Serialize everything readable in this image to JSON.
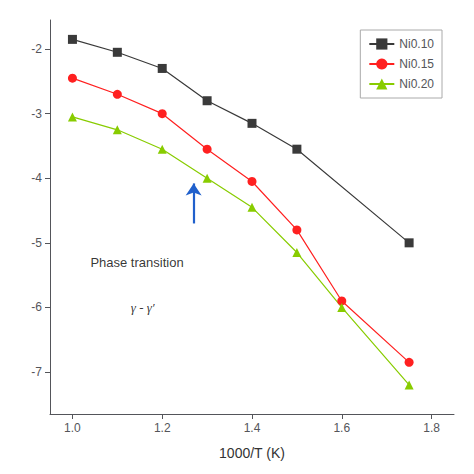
{
  "chart_data": {
    "type": "line",
    "xlabel": "1000/T (K)",
    "xlim": [
      0.95,
      1.85
    ],
    "ylim": [
      -7.65,
      -1.55
    ],
    "xticks": [
      {
        "value": 1.0,
        "label": "1.0"
      },
      1.2,
      1.4,
      1.6,
      1.8
    ],
    "yticks": [
      -7,
      -6,
      -5,
      -4,
      -3,
      -2
    ],
    "grid": false,
    "legend": "upper right",
    "series": [
      {
        "name": "Ni0.10",
        "color": "#3a3a3a",
        "marker": "square",
        "x": [
          1.0,
          1.1,
          1.2,
          1.3,
          1.4,
          1.5,
          1.75
        ],
        "values": [
          -1.85,
          -2.05,
          -2.3,
          -2.8,
          -3.15,
          -3.55,
          -5.0
        ]
      },
      {
        "name": "Ni0.15",
        "color": "#ff2020",
        "marker": "circle",
        "x": [
          1.0,
          1.1,
          1.2,
          1.3,
          1.4,
          1.5,
          1.6,
          1.75
        ],
        "values": [
          -2.45,
          -2.7,
          -3.0,
          -3.55,
          -4.05,
          -4.8,
          -5.9,
          -6.85
        ]
      },
      {
        "name": "Ni0.20",
        "color": "#88cc00",
        "marker": "triangle",
        "x": [
          1.0,
          1.1,
          1.2,
          1.3,
          1.4,
          1.5,
          1.6,
          1.75
        ],
        "values": [
          -3.05,
          -3.25,
          -3.55,
          -4.0,
          -4.45,
          -5.15,
          -6.0,
          -7.2
        ]
      }
    ],
    "annotations": [
      {
        "text": "Phase transition",
        "x": 1.04,
        "y": -5.3
      },
      {
        "text": "γ - γ′",
        "x": 1.13,
        "y": -6.0,
        "style": "italic"
      }
    ],
    "arrow": {
      "x": 1.27,
      "y_start": -4.7,
      "y_end": -4.08,
      "color": "#2060cc"
    }
  }
}
